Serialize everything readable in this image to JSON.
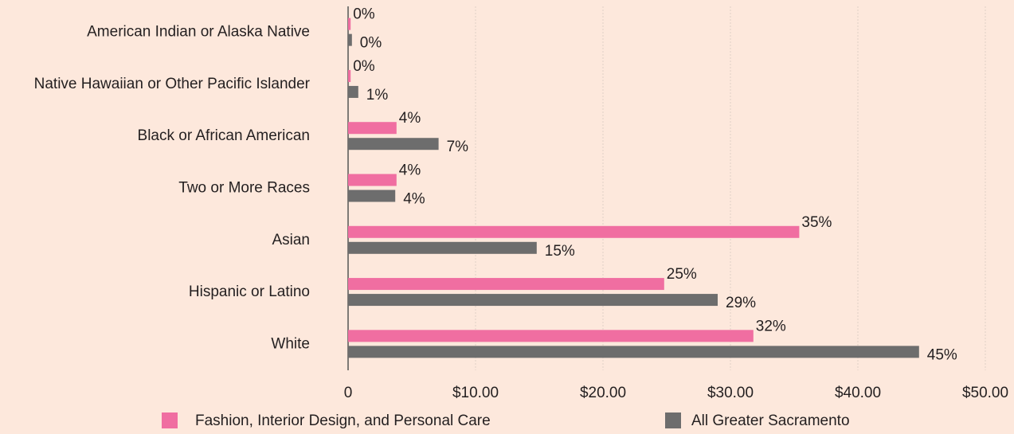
{
  "chart_data": {
    "type": "barh",
    "categories": [
      "American Indian or Alaska Native",
      "Native Hawaiian or Other Pacific Islander",
      "Black or African American",
      "Two or More Races",
      "Asian",
      "Hispanic or Latino",
      "White"
    ],
    "series": [
      {
        "name": "Fashion, Interior Design, and Personal Care",
        "color": "#f06ea1",
        "values": [
          0.2,
          0.2,
          3.8,
          3.8,
          35.4,
          24.8,
          31.8
        ],
        "value_labels": [
          "0%",
          "0%",
          "4%",
          "4%",
          "35%",
          "25%",
          "32%"
        ]
      },
      {
        "name": "All Greater Sacramento",
        "color": "#6d6d6d",
        "values": [
          0.3,
          0.8,
          7.1,
          3.7,
          14.8,
          29,
          44.8
        ],
        "value_labels": [
          "0%",
          "1%",
          "7%",
          "4%",
          "15%",
          "29%",
          "45%"
        ]
      }
    ],
    "xlim": [
      0,
      50
    ],
    "xticks": [
      0,
      {
        "value": 10,
        "label": "$10.00"
      },
      {
        "value": 20,
        "label": "$20.00"
      },
      {
        "value": 30,
        "label": "$30.00"
      },
      {
        "value": 40,
        "label": "$40.00"
      },
      {
        "value": 50,
        "label": "$50.00"
      }
    ],
    "grid": true,
    "legend": "bottom"
  }
}
